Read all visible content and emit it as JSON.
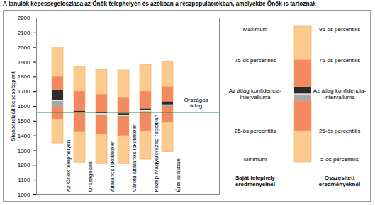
{
  "chart_data": {
    "type": "box",
    "title": "A tanulók képességeloszlása az Önök telephelyén és azokban a részpopulációkban, amelyekbe Önök is tartoznak",
    "y_label": "Standardizált képességpont",
    "categories": [
      "Az Önök telephelyén",
      "Országosan",
      "Általános iskolákban",
      "Városi általános iskolákban",
      "Közép-Magyarország régióban",
      "Érdi járásban"
    ],
    "high": [
      2000,
      1870,
      1850,
      1845,
      1880,
      1900
    ],
    "p75": [
      1800,
      1700,
      1680,
      1660,
      1700,
      1730
    ],
    "ci_high": [
      1710,
      1567,
      1558,
      1550,
      1582,
      1630
    ],
    "mean": [
      1640,
      1560,
      1550,
      1540,
      1570,
      1610
    ],
    "ci_low": [
      1590,
      1553,
      1542,
      1530,
      1558,
      1590
    ],
    "p25": [
      1510,
      1425,
      1410,
      1400,
      1430,
      1490
    ],
    "low": [
      1350,
      1220,
      1210,
      1210,
      1240,
      1290
    ],
    "reference_line": {
      "label": "Országos átlag",
      "value": 1560
    },
    "ylim": [
      1000,
      2200
    ],
    "yticks": [
      1000,
      1100,
      1200,
      1300,
      1400,
      1500,
      1600,
      1700,
      1800,
      1900,
      2000,
      2100,
      2200
    ],
    "legend_panels": [
      {
        "title": "Saját telephely eredményeinél",
        "labels": [
          "Maximum",
          "75-ös percentilis",
          "Az átlag konfidencia-intervalluma",
          "25-ös percentilis",
          "Minimum"
        ]
      },
      {
        "title": "Összesített eredményeknél",
        "labels": [
          "95-ös percentilis",
          "75-ös percentilis",
          "Az átlag konfidencia-intervalluma",
          "25-ös percentilis",
          "5-ös percentilis"
        ]
      }
    ]
  }
}
